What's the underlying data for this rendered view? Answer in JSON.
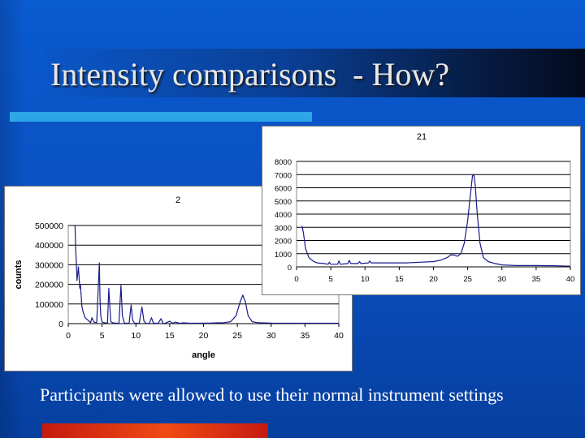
{
  "slide": {
    "title": "Intensity comparisons  - How?",
    "caption": "Participants were allowed to use their normal instrument settings"
  },
  "colors": {
    "series_line": "#1a1a8c",
    "accent_bar": "#2ea6e6",
    "bottom_bar": "#e23a12"
  },
  "chart_data": [
    {
      "type": "line",
      "title": "2",
      "xlabel": "angle",
      "ylabel": "counts",
      "xlim": [
        0,
        40
      ],
      "ylim": [
        0,
        500000
      ],
      "x_ticks": [
        0,
        5,
        10,
        15,
        20,
        25,
        30,
        35,
        40
      ],
      "y_ticks": [
        0,
        100000,
        200000,
        300000,
        400000,
        500000
      ],
      "grid": "horizontal",
      "x": [
        1.0,
        1.1,
        1.3,
        1.5,
        1.7,
        1.8,
        2.0,
        2.2,
        2.5,
        3.0,
        3.3,
        3.5,
        3.8,
        4.2,
        4.6,
        4.7,
        4.8,
        5.0,
        5.3,
        5.8,
        6.0,
        6.2,
        6.3,
        6.6,
        7.0,
        7.5,
        7.8,
        8.0,
        8.3,
        9.0,
        9.3,
        9.5,
        9.8,
        10.5,
        10.9,
        11.2,
        11.5,
        12.0,
        12.3,
        12.6,
        13.3,
        13.7,
        14.0,
        14.3,
        15.0,
        15.5,
        15.8,
        16.5,
        17.0,
        18.0,
        19.0,
        20.0,
        21.0,
        22.0,
        23.0,
        24.0,
        24.8,
        25.4,
        25.8,
        26.2,
        26.6,
        27.2,
        28.0,
        30.0,
        35.0,
        40.0
      ],
      "y": [
        500000,
        380000,
        220000,
        290000,
        180000,
        200000,
        90000,
        60000,
        30000,
        15000,
        5000,
        30000,
        8000,
        5000,
        310000,
        120000,
        40000,
        8000,
        5000,
        3000,
        180000,
        60000,
        10000,
        4000,
        3000,
        2000,
        195000,
        40000,
        3000,
        2000,
        95000,
        20000,
        2000,
        2000,
        85000,
        12000,
        2000,
        1500,
        30000,
        3000,
        1500,
        25000,
        2000,
        1500,
        12000,
        1500,
        8000,
        1500,
        4000,
        2000,
        2000,
        2500,
        3000,
        4000,
        5000,
        10000,
        40000,
        110000,
        145000,
        110000,
        40000,
        10000,
        5000,
        3000,
        2000,
        2000
      ],
      "colors": {
        "line": "#1a1a8c"
      }
    },
    {
      "type": "line",
      "title": "21",
      "xlabel": "",
      "ylabel": "",
      "xlim": [
        0,
        40
      ],
      "ylim": [
        0,
        8000
      ],
      "x_ticks": [
        0,
        5,
        10,
        15,
        20,
        25,
        30,
        35,
        40
      ],
      "y_ticks": [
        0,
        1000,
        2000,
        3000,
        4000,
        5000,
        6000,
        7000,
        8000
      ],
      "grid": "horizontal",
      "x": [
        0.8,
        1.0,
        1.3,
        1.8,
        2.5,
        3.0,
        4.0,
        4.6,
        4.8,
        5.0,
        6.0,
        6.2,
        6.4,
        7.5,
        7.7,
        7.9,
        9.0,
        9.2,
        9.4,
        10.5,
        10.7,
        10.9,
        12.0,
        14.0,
        16.0,
        18.0,
        20.0,
        21.0,
        22.0,
        22.5,
        23.0,
        23.5,
        24.0,
        24.5,
        25.0,
        25.4,
        25.7,
        25.9,
        26.1,
        26.4,
        26.8,
        27.3,
        28.0,
        29.0,
        30.0,
        32.0,
        35.0,
        38.0,
        40.0
      ],
      "y": [
        3100,
        2600,
        1400,
        700,
        400,
        300,
        250,
        200,
        350,
        200,
        200,
        450,
        200,
        250,
        500,
        250,
        250,
        400,
        250,
        300,
        450,
        300,
        300,
        300,
        300,
        350,
        400,
        500,
        700,
        900,
        900,
        800,
        1000,
        1800,
        3500,
        5500,
        6900,
        7000,
        6200,
        4000,
        1800,
        700,
        400,
        250,
        150,
        100,
        100,
        80,
        50
      ],
      "colors": {
        "line": "#1a1a8c"
      }
    }
  ]
}
